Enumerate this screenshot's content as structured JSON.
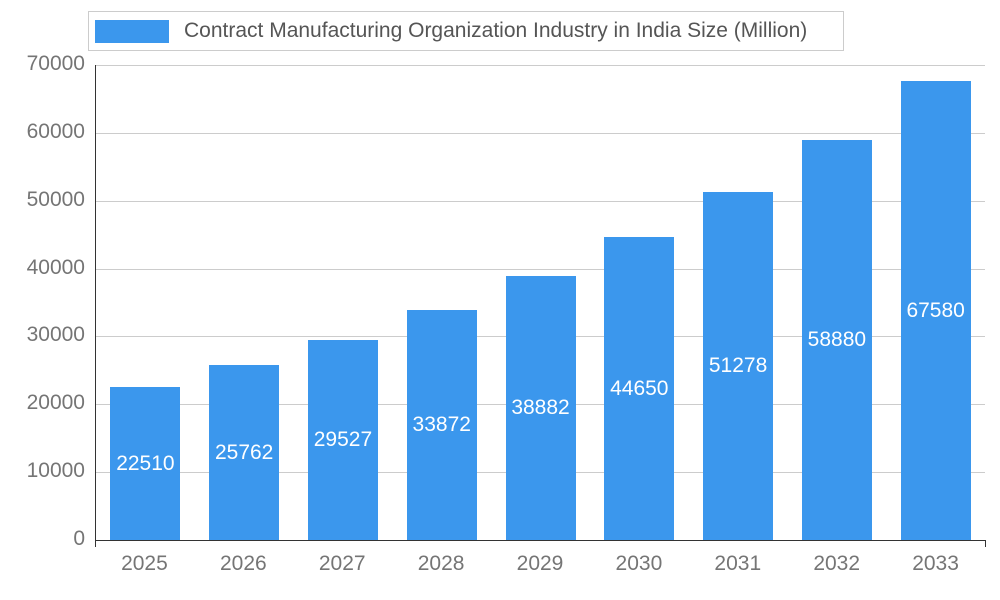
{
  "chart_data": {
    "type": "bar",
    "title": "Contract Manufacturing Organization Industry in India Size (Million)",
    "categories": [
      "2025",
      "2026",
      "2027",
      "2028",
      "2029",
      "2030",
      "2031",
      "2032",
      "2033"
    ],
    "values": [
      22510,
      25762,
      29527,
      33872,
      38882,
      44650,
      51278,
      58880,
      67580
    ],
    "xlabel": "",
    "ylabel": "",
    "ylim": [
      0,
      70000
    ],
    "yticks": [
      0,
      10000,
      20000,
      30000,
      40000,
      50000,
      60000,
      70000
    ],
    "grid": true,
    "legend_position": "top",
    "value_labels_position": "inside-center",
    "colors": {
      "bar": "#3b97ed",
      "title": "#555555",
      "axis_label": "#757575",
      "gridline": "#cccccc",
      "axis_line": "#333333",
      "value_label": "#ffffff",
      "background": "#ffffff",
      "legend_border": "#cccccc"
    }
  }
}
